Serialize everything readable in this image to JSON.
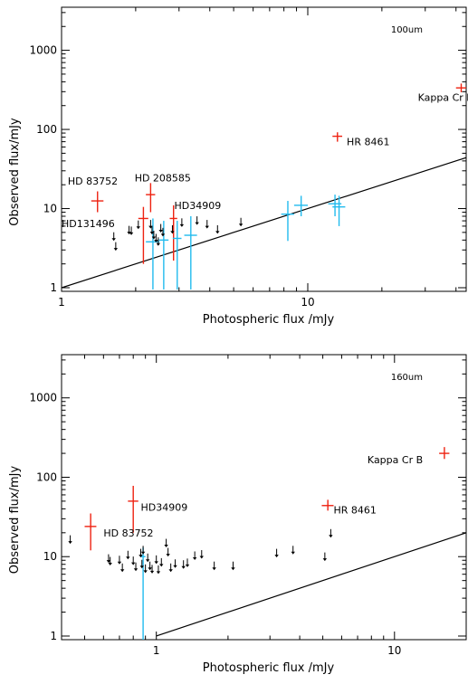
{
  "figure": {
    "background": "#ffffff",
    "axis_color": "#000000"
  },
  "chart_data": [
    {
      "type": "scatter",
      "panel_label": "100um",
      "xlabel": "Photospheric flux /mJy",
      "ylabel": "Observed flux/mJy",
      "x_scale": "log",
      "y_scale": "log",
      "xlim": [
        1,
        44
      ],
      "ylim": [
        0.9,
        3500
      ],
      "x_tick_labels": [
        {
          "value": 1,
          "label": "1"
        },
        {
          "value": 10,
          "label": "10"
        }
      ],
      "y_tick_labels": [
        {
          "value": 1,
          "label": "1"
        },
        {
          "value": 10,
          "label": "10"
        },
        {
          "value": 100,
          "label": "100"
        },
        {
          "value": 1000,
          "label": "1000"
        }
      ],
      "grid": false,
      "reference_line": {
        "description": "observed = photospheric",
        "from": [
          1,
          1
        ],
        "to": [
          44,
          44
        ]
      },
      "series": [
        {
          "color": "#ee2211",
          "kind": "detection",
          "points": [
            {
              "x": 1.4,
              "y": 12.5,
              "xerr": 0.08,
              "ylo": 9.0,
              "yhi": 16.5
            },
            {
              "x": 2.15,
              "y": 7.5,
              "xerr": 0.1,
              "ylo": 2.0,
              "yhi": 10.5
            },
            {
              "x": 2.3,
              "y": 15.0,
              "xerr": 0.1,
              "ylo": 9.0,
              "yhi": 21.0
            },
            {
              "x": 2.85,
              "y": 7.5,
              "xerr": 0.1,
              "ylo": 2.2,
              "yhi": 11.0
            },
            {
              "x": 13.2,
              "y": 82.0,
              "xerr": 0.6,
              "ylo": 70.0,
              "yhi": 92.0
            },
            {
              "x": 42.0,
              "y": 335.0,
              "xerr": 2.0,
              "ylo": 295.0,
              "yhi": 380.0
            }
          ]
        },
        {
          "color": "#22bbee",
          "kind": "detection",
          "points": [
            {
              "x": 2.35,
              "y": 3.8,
              "xerr": 0.15,
              "ylo": 0.95,
              "yhi": 7.5
            },
            {
              "x": 2.6,
              "y": 4.0,
              "xerr": 0.12,
              "ylo": 0.95,
              "yhi": 7.0
            },
            {
              "x": 2.95,
              "y": 4.2,
              "xerr": 0.12,
              "ylo": 0.95,
              "yhi": 7.0
            },
            {
              "x": 3.35,
              "y": 4.6,
              "xerr": 0.2,
              "ylo": 0.95,
              "yhi": 8.0
            },
            {
              "x": 8.3,
              "y": 8.5,
              "xerr": 0.5,
              "ylo": 3.9,
              "yhi": 12.5
            },
            {
              "x": 9.4,
              "y": 11.0,
              "xerr": 0.6,
              "ylo": 8.0,
              "yhi": 14.5
            },
            {
              "x": 12.9,
              "y": 11.5,
              "xerr": 0.8,
              "ylo": 8.0,
              "yhi": 15.0
            },
            {
              "x": 13.4,
              "y": 10.5,
              "xerr": 0.8,
              "ylo": 6.0,
              "yhi": 14.5
            }
          ]
        },
        {
          "color": "#000000",
          "kind": "upper_limit",
          "points": [
            {
              "x": 1.63,
              "y": 4.4
            },
            {
              "x": 1.66,
              "y": 3.3
            },
            {
              "x": 1.88,
              "y": 5.3
            },
            {
              "x": 1.92,
              "y": 5.2
            },
            {
              "x": 2.05,
              "y": 6.2
            },
            {
              "x": 2.3,
              "y": 6.3
            },
            {
              "x": 2.33,
              "y": 5.3
            },
            {
              "x": 2.37,
              "y": 4.6
            },
            {
              "x": 2.42,
              "y": 4.2
            },
            {
              "x": 2.47,
              "y": 3.8
            },
            {
              "x": 2.53,
              "y": 5.6
            },
            {
              "x": 2.58,
              "y": 5.0
            },
            {
              "x": 2.82,
              "y": 5.4
            },
            {
              "x": 3.08,
              "y": 6.6
            },
            {
              "x": 3.55,
              "y": 7.0
            },
            {
              "x": 3.9,
              "y": 6.3
            },
            {
              "x": 4.3,
              "y": 5.4
            },
            {
              "x": 5.35,
              "y": 6.7
            }
          ]
        }
      ],
      "annotations": [
        {
          "text": "HD 83752",
          "x": 1.06,
          "y": 20.0,
          "anchor": "start"
        },
        {
          "text": "HD 208585",
          "x": 1.98,
          "y": 22.0,
          "anchor": "start"
        },
        {
          "text": "HD34909",
          "x": 2.87,
          "y": 9.9,
          "anchor": "start"
        },
        {
          "text": "HD131496",
          "x": 1.0,
          "y": 5.85,
          "anchor": "start"
        },
        {
          "text": "HR 8461",
          "x": 14.4,
          "y": 63.0,
          "anchor": "start"
        },
        {
          "text": "Kappa Cr B",
          "x": 28.0,
          "y": 230.0,
          "anchor": "start"
        }
      ]
    },
    {
      "type": "scatter",
      "panel_label": "160um",
      "xlabel": "Photospheric flux /mJy",
      "ylabel": "Observed flux/mJy",
      "x_scale": "log",
      "y_scale": "log",
      "xlim": [
        0.4,
        20
      ],
      "ylim": [
        0.9,
        3500
      ],
      "x_tick_labels": [
        {
          "value": 1,
          "label": "1"
        },
        {
          "value": 10,
          "label": "10"
        }
      ],
      "y_tick_labels": [
        {
          "value": 1,
          "label": "1"
        },
        {
          "value": 10,
          "label": "10"
        },
        {
          "value": 100,
          "label": "100"
        },
        {
          "value": 1000,
          "label": "1000"
        }
      ],
      "grid": false,
      "reference_line": {
        "description": "observed = photospheric",
        "from": [
          1,
          1
        ],
        "to": [
          20,
          20
        ]
      },
      "series": [
        {
          "color": "#ee2211",
          "kind": "detection",
          "points": [
            {
              "x": 0.53,
              "y": 24.0,
              "xerr": 0.03,
              "ylo": 12.0,
              "yhi": 35.0
            },
            {
              "x": 0.8,
              "y": 50.0,
              "xerr": 0.04,
              "ylo": 20.0,
              "yhi": 78.0
            },
            {
              "x": 5.25,
              "y": 44.0,
              "xerr": 0.3,
              "ylo": 38.0,
              "yhi": 52.0
            },
            {
              "x": 16.2,
              "y": 200.0,
              "xerr": 0.8,
              "ylo": 170.0,
              "yhi": 240.0
            }
          ]
        },
        {
          "color": "#22bbee",
          "kind": "detection",
          "points": [
            {
              "x": 0.88,
              "y": 10.0,
              "xerr": 0.02,
              "ylo": 0.9,
              "yhi": 13.0
            }
          ]
        },
        {
          "color": "#000000",
          "kind": "upper_limit",
          "points": [
            {
              "x": 0.435,
              "y": 16.3
            },
            {
              "x": 0.63,
              "y": 9.4
            },
            {
              "x": 0.64,
              "y": 8.7
            },
            {
              "x": 0.7,
              "y": 9.0
            },
            {
              "x": 0.72,
              "y": 7.2
            },
            {
              "x": 0.76,
              "y": 10.4
            },
            {
              "x": 0.8,
              "y": 8.8
            },
            {
              "x": 0.82,
              "y": 7.4
            },
            {
              "x": 0.86,
              "y": 11.0
            },
            {
              "x": 0.87,
              "y": 8.0
            },
            {
              "x": 0.88,
              "y": 12.0
            },
            {
              "x": 0.9,
              "y": 7.0
            },
            {
              "x": 0.92,
              "y": 9.6
            },
            {
              "x": 0.94,
              "y": 7.6
            },
            {
              "x": 0.96,
              "y": 6.9
            },
            {
              "x": 1.0,
              "y": 9.1
            },
            {
              "x": 1.02,
              "y": 6.8
            },
            {
              "x": 1.05,
              "y": 8.4
            },
            {
              "x": 1.1,
              "y": 14.7
            },
            {
              "x": 1.12,
              "y": 11.3
            },
            {
              "x": 1.15,
              "y": 7.2
            },
            {
              "x": 1.2,
              "y": 8.1
            },
            {
              "x": 1.3,
              "y": 7.9
            },
            {
              "x": 1.35,
              "y": 8.3
            },
            {
              "x": 1.45,
              "y": 10.2
            },
            {
              "x": 1.55,
              "y": 10.6
            },
            {
              "x": 1.75,
              "y": 7.6
            },
            {
              "x": 2.1,
              "y": 7.6
            },
            {
              "x": 3.2,
              "y": 11.0
            },
            {
              "x": 3.75,
              "y": 12.0
            },
            {
              "x": 5.1,
              "y": 9.9
            },
            {
              "x": 5.4,
              "y": 19.5
            }
          ]
        }
      ],
      "annotations": [
        {
          "text": "HD 83752",
          "x": 0.6,
          "y": 18.0,
          "anchor": "start"
        },
        {
          "text": "HD34909",
          "x": 0.86,
          "y": 38.0,
          "anchor": "start"
        },
        {
          "text": "HR 8461",
          "x": 5.55,
          "y": 35.0,
          "anchor": "start"
        },
        {
          "text": "Kappa Cr B",
          "x": 7.7,
          "y": 150.0,
          "anchor": "start"
        }
      ]
    }
  ]
}
